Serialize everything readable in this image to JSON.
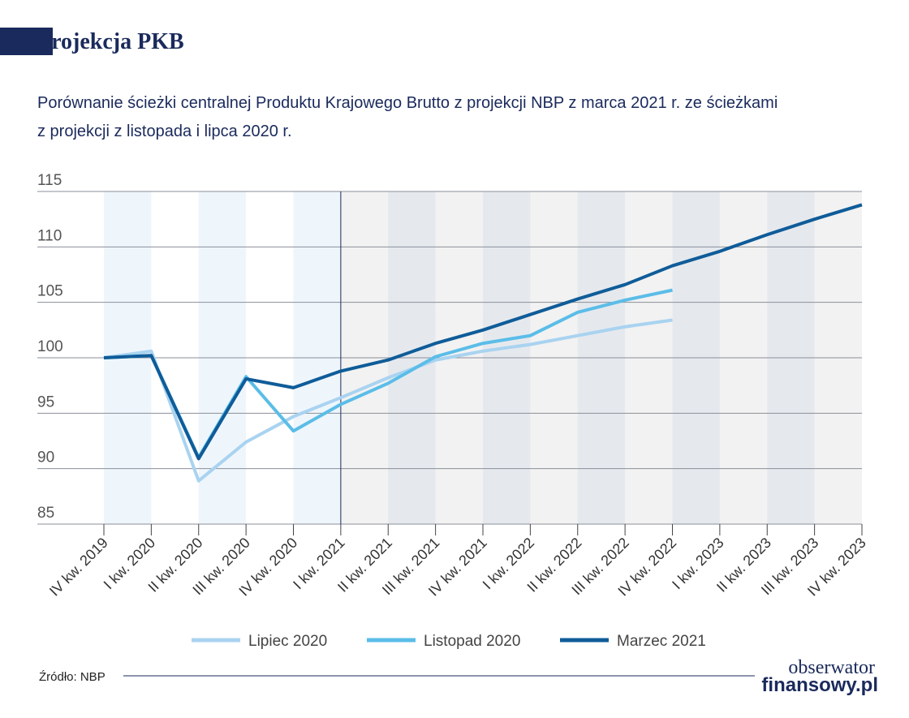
{
  "chart_data": {
    "type": "line",
    "title": "Projekcja PKB",
    "subtitle": [
      "Porównanie ścieżki centralnej Produktu Krajowego Brutto z projekcji NBP z marca 2021 r. ze ścieżkami",
      "z projekcji z listopada i lipca 2020 r."
    ],
    "categories": [
      "IV kw. 2019",
      "I kw. 2020",
      "II kw. 2020",
      "III kw. 2020",
      "IV kw. 2020",
      "I kw. 2021",
      "II kw. 2021",
      "III kw. 2021",
      "IV kw. 2021",
      "I kw. 2022",
      "II kw. 2022",
      "III kw. 2022",
      "IV kw. 2022",
      "I kw. 2023",
      "II kw. 2023",
      "III kw. 2023",
      "IV kw. 2023"
    ],
    "series": [
      {
        "name": "Lipiec 2020",
        "color": "#a9d3f0",
        "values": [
          100,
          100.6,
          88.9,
          92.4,
          94.7,
          96.4,
          98.2,
          99.8,
          100.6,
          101.2,
          102.0,
          102.8,
          103.4,
          null,
          null,
          null,
          null
        ]
      },
      {
        "name": "Listopad 2020",
        "color": "#5bbde8",
        "values": [
          100,
          100.2,
          91.0,
          98.3,
          93.4,
          95.8,
          97.7,
          100.1,
          101.3,
          102.0,
          104.1,
          105.2,
          106.1,
          null,
          null,
          null,
          null
        ]
      },
      {
        "name": "Marzec 2021",
        "color": "#0f5c99",
        "values": [
          100,
          100.2,
          90.9,
          98.1,
          97.3,
          98.8,
          99.8,
          101.3,
          102.5,
          103.9,
          105.3,
          106.6,
          108.3,
          109.6,
          111.1,
          112.5,
          113.8
        ]
      }
    ],
    "ylim": [
      85,
      115
    ],
    "yticks": [
      85,
      90,
      95,
      100,
      105,
      110,
      115
    ],
    "grid": true,
    "legend": "bottom",
    "source": "Źródło: NBP",
    "brand": [
      "obserwator",
      "finansowy.pl"
    ]
  }
}
